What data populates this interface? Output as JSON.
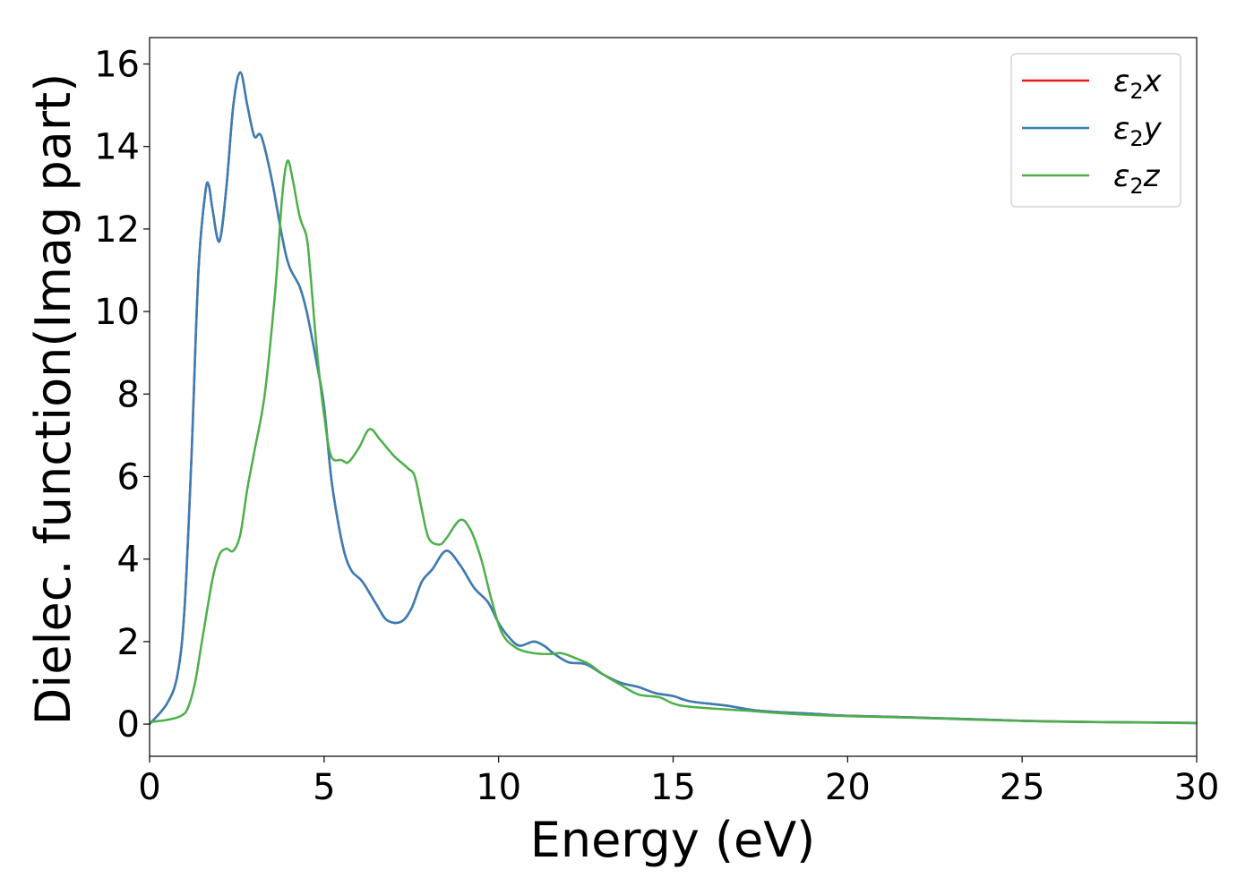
{
  "chart_data": {
    "type": "line",
    "title": "",
    "xlabel": "Energy (eV)",
    "ylabel": "Dielec. function(Imag part)",
    "xlim": [
      0,
      30
    ],
    "ylim": [
      -0.78,
      16.64
    ],
    "xticks": [
      0,
      5,
      10,
      15,
      20,
      25,
      30
    ],
    "yticks": [
      0,
      2,
      4,
      6,
      8,
      10,
      12,
      14,
      16
    ],
    "grid": false,
    "legend_position": "top-right",
    "series": [
      {
        "name": "ε2x",
        "label_main": "ε",
        "label_sub": "2",
        "label_axis": "x",
        "color": "#e41a1c",
        "x": [
          0,
          0.5,
          0.8,
          1.0,
          1.2,
          1.4,
          1.6,
          1.7,
          1.8,
          2.0,
          2.2,
          2.4,
          2.6,
          2.8,
          3.0,
          3.2,
          3.5,
          3.8,
          4.0,
          4.3,
          4.5,
          4.8,
          5.0,
          5.2,
          5.4,
          5.6,
          5.8,
          6.1,
          6.5,
          6.8,
          7.2,
          7.5,
          7.8,
          8.1,
          8.5,
          8.9,
          9.3,
          9.7,
          10.0,
          10.3,
          10.6,
          11.0,
          11.3,
          11.6,
          12.0,
          12.5,
          13.0,
          13.5,
          14.0,
          14.5,
          15.0,
          15.5,
          16.5,
          17.5,
          19,
          20,
          22,
          25,
          27,
          30
        ],
        "y": [
          0.0,
          0.5,
          1.2,
          2.8,
          6.5,
          11.0,
          12.9,
          13.05,
          12.5,
          11.7,
          13.0,
          15.0,
          15.8,
          15.0,
          14.25,
          14.25,
          13.2,
          11.8,
          11.1,
          10.6,
          10.0,
          8.7,
          7.7,
          6.0,
          4.9,
          4.1,
          3.7,
          3.45,
          2.9,
          2.52,
          2.48,
          2.8,
          3.45,
          3.75,
          4.2,
          3.85,
          3.3,
          2.95,
          2.45,
          2.1,
          1.9,
          2.0,
          1.9,
          1.7,
          1.5,
          1.45,
          1.2,
          1.0,
          0.9,
          0.75,
          0.68,
          0.55,
          0.45,
          0.32,
          0.25,
          0.2,
          0.16,
          0.08,
          0.05,
          0.03
        ]
      },
      {
        "name": "ε2y",
        "label_main": "ε",
        "label_sub": "2",
        "label_axis": "y",
        "color": "#377eb8",
        "x": [
          0,
          0.5,
          0.8,
          1.0,
          1.2,
          1.4,
          1.6,
          1.7,
          1.8,
          2.0,
          2.2,
          2.4,
          2.6,
          2.8,
          3.0,
          3.2,
          3.5,
          3.8,
          4.0,
          4.3,
          4.5,
          4.8,
          5.0,
          5.2,
          5.4,
          5.6,
          5.8,
          6.1,
          6.5,
          6.8,
          7.2,
          7.5,
          7.8,
          8.1,
          8.5,
          8.9,
          9.3,
          9.7,
          10.0,
          10.3,
          10.6,
          11.0,
          11.3,
          11.6,
          12.0,
          12.5,
          13.0,
          13.5,
          14.0,
          14.5,
          15.0,
          15.5,
          16.5,
          17.5,
          19,
          20,
          22,
          25,
          27,
          30
        ],
        "y": [
          0.0,
          0.5,
          1.2,
          2.8,
          6.5,
          11.0,
          12.9,
          13.05,
          12.5,
          11.7,
          13.0,
          15.0,
          15.8,
          15.0,
          14.25,
          14.25,
          13.2,
          11.8,
          11.1,
          10.6,
          10.0,
          8.7,
          7.7,
          6.0,
          4.9,
          4.1,
          3.7,
          3.45,
          2.9,
          2.52,
          2.48,
          2.8,
          3.45,
          3.75,
          4.2,
          3.85,
          3.3,
          2.95,
          2.45,
          2.1,
          1.9,
          2.0,
          1.9,
          1.7,
          1.5,
          1.45,
          1.2,
          1.0,
          0.9,
          0.75,
          0.68,
          0.55,
          0.45,
          0.32,
          0.25,
          0.2,
          0.16,
          0.08,
          0.05,
          0.03
        ]
      },
      {
        "name": "ε2z",
        "label_main": "ε",
        "label_sub": "2",
        "label_axis": "z",
        "color": "#4daf4a",
        "x": [
          0,
          0.5,
          0.9,
          1.1,
          1.3,
          1.5,
          1.8,
          2.0,
          2.2,
          2.4,
          2.6,
          2.8,
          3.0,
          3.3,
          3.6,
          3.8,
          3.95,
          4.1,
          4.3,
          4.5,
          4.6,
          4.8,
          5.0,
          5.2,
          5.5,
          5.7,
          6.0,
          6.3,
          6.6,
          7.0,
          7.4,
          7.6,
          7.8,
          8.0,
          8.3,
          8.5,
          8.9,
          9.2,
          9.5,
          9.8,
          10.1,
          10.5,
          11.0,
          11.5,
          11.8,
          12.2,
          12.6,
          13.0,
          13.5,
          14.0,
          14.6,
          15.0,
          15.5,
          17,
          19,
          22,
          25,
          30
        ],
        "y": [
          0.05,
          0.1,
          0.2,
          0.4,
          1.0,
          2.0,
          3.5,
          4.1,
          4.25,
          4.2,
          4.6,
          5.7,
          6.6,
          8.0,
          10.5,
          12.8,
          13.65,
          13.2,
          12.3,
          11.8,
          11.0,
          9.0,
          7.5,
          6.5,
          6.4,
          6.35,
          6.7,
          7.15,
          6.9,
          6.5,
          6.2,
          6.0,
          5.2,
          4.5,
          4.35,
          4.5,
          4.95,
          4.7,
          4.0,
          3.0,
          2.2,
          1.85,
          1.72,
          1.7,
          1.72,
          1.6,
          1.45,
          1.2,
          0.95,
          0.72,
          0.65,
          0.5,
          0.42,
          0.33,
          0.22,
          0.15,
          0.08,
          0.02
        ]
      }
    ]
  }
}
